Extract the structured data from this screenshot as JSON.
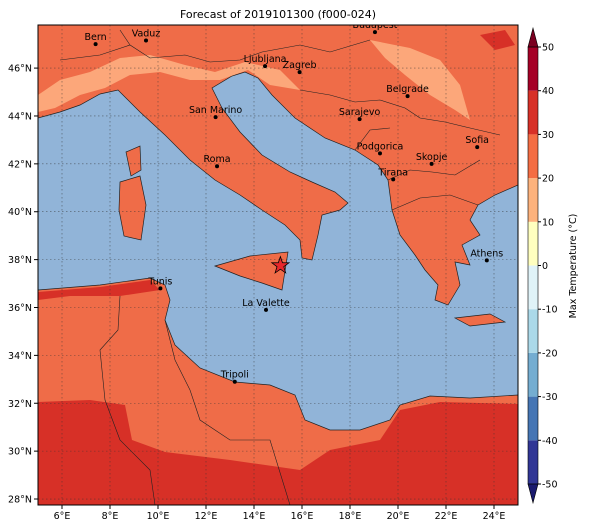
{
  "map": {
    "title": "Forecast of 2019101300 (f000-024)",
    "lonlim": [
      5,
      25
    ],
    "latlim": [
      27.75,
      47.8
    ],
    "lon_ticks": [
      {
        "value": 6,
        "label": "6°E"
      },
      {
        "value": 8,
        "label": "8°E"
      },
      {
        "value": 10,
        "label": "10°E"
      },
      {
        "value": 12,
        "label": "12°E"
      },
      {
        "value": 14,
        "label": "14°E"
      },
      {
        "value": 16,
        "label": "16°E"
      },
      {
        "value": 18,
        "label": "18°E"
      },
      {
        "value": 20,
        "label": "20°E"
      },
      {
        "value": 22,
        "label": "22°E"
      },
      {
        "value": 24,
        "label": "24°E"
      }
    ],
    "lat_ticks": [
      {
        "value": 28,
        "label": "28°N"
      },
      {
        "value": 30,
        "label": "30°N"
      },
      {
        "value": 32,
        "label": "32°N"
      },
      {
        "value": 34,
        "label": "34°N"
      },
      {
        "value": 36,
        "label": "36°N"
      },
      {
        "value": 38,
        "label": "38°N"
      },
      {
        "value": 40,
        "label": "40°N"
      },
      {
        "value": 42,
        "label": "42°N"
      },
      {
        "value": 44,
        "label": "44°N"
      },
      {
        "value": 46,
        "label": "46°N"
      }
    ],
    "grid": true,
    "cities": [
      {
        "name": "Bern",
        "lon": 7.4,
        "lat": 47.0
      },
      {
        "name": "Vaduz",
        "lon": 9.5,
        "lat": 47.15
      },
      {
        "name": "Budapest",
        "lon": 19.04,
        "lat": 47.5
      },
      {
        "name": "Ljubljana",
        "lon": 14.46,
        "lat": 46.08
      },
      {
        "name": "Zagreb",
        "lon": 15.9,
        "lat": 45.83
      },
      {
        "name": "Belgrade",
        "lon": 20.4,
        "lat": 44.83
      },
      {
        "name": "San Marino",
        "lon": 12.4,
        "lat": 43.95
      },
      {
        "name": "Sarajevo",
        "lon": 18.4,
        "lat": 43.87
      },
      {
        "name": "Sofia",
        "lon": 23.3,
        "lat": 42.7
      },
      {
        "name": "Roma",
        "lon": 12.46,
        "lat": 41.9
      },
      {
        "name": "Podgorica",
        "lon": 19.25,
        "lat": 42.44
      },
      {
        "name": "Skopje",
        "lon": 21.4,
        "lat": 42.0
      },
      {
        "name": "Tirana",
        "lon": 19.8,
        "lat": 41.35
      },
      {
        "name": "Athens",
        "lon": 23.7,
        "lat": 37.97
      },
      {
        "name": "Tunis",
        "lon": 10.1,
        "lat": 36.8
      },
      {
        "name": "La Valette",
        "lon": 14.5,
        "lat": 35.9
      },
      {
        "name": "Tripoli",
        "lon": 13.2,
        "lat": 32.9
      }
    ],
    "star": {
      "lon": 15.1,
      "lat": 37.75,
      "color": "#e8262a"
    },
    "colorbar": {
      "label": "Max Temperature (°C)",
      "lim": [
        -50,
        50
      ],
      "ticks": [
        -50,
        -40,
        -30,
        -20,
        -10,
        0,
        10,
        20,
        30,
        40,
        50
      ],
      "colors": [
        "#313695",
        "#4575b4",
        "#74add1",
        "#abd9e9",
        "#e0f3f8",
        "#ffffbf",
        "#fdb27c",
        "#f46d43",
        "#d73027",
        "#a50026"
      ],
      "extend_colors": [
        "#1a1a6e",
        "#7a0020"
      ]
    }
  }
}
